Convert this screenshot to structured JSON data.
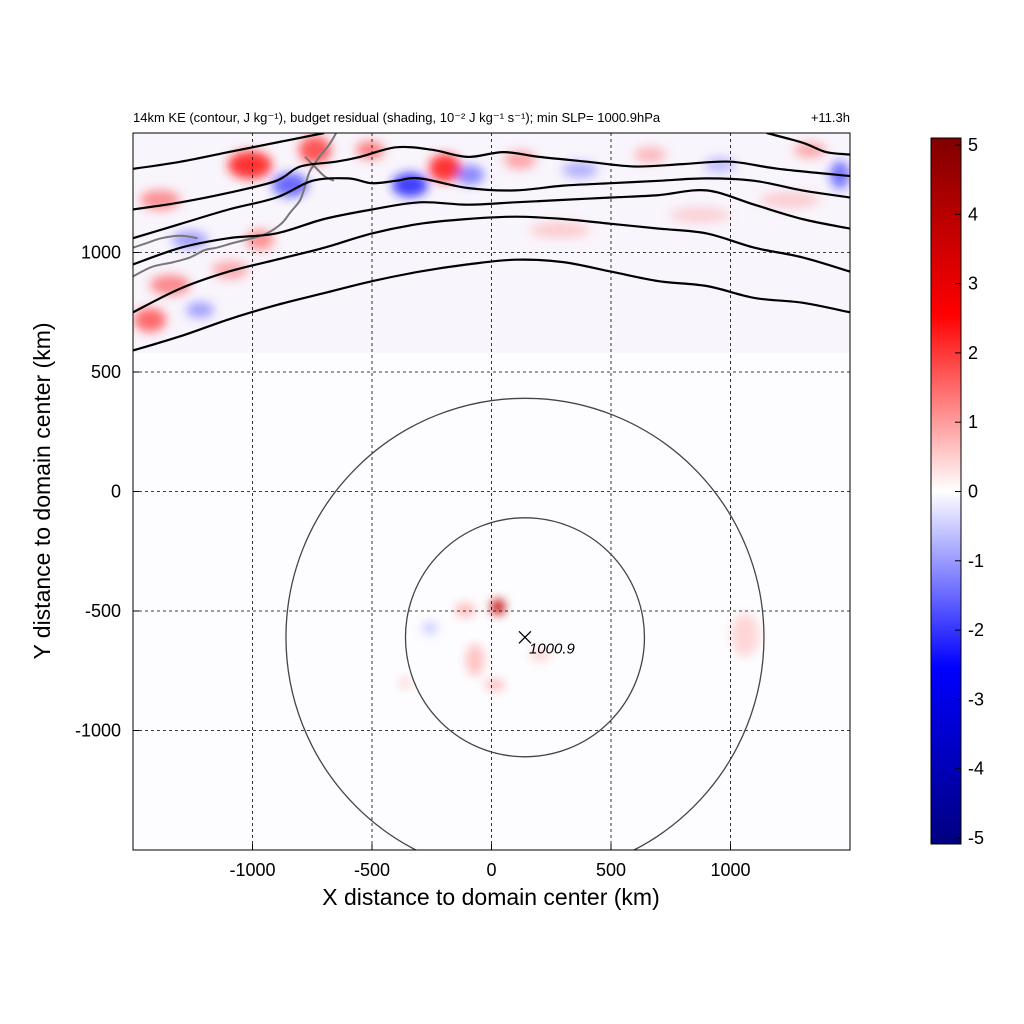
{
  "title": "14km KE (contour, J kg⁻¹), budget residual (shading, 10⁻² J kg⁻¹ s⁻¹); min SLP= 1000.9hPa",
  "time_label": "+11.3h",
  "chart_data": {
    "type": "heatmap",
    "title": "14km KE (contour, J kg⁻¹), budget residual (shading, 10⁻² J kg⁻¹ s⁻¹); min SLP= 1000.9hPa",
    "time_label": "+11.3h",
    "xlabel": "X distance to domain center (km)",
    "ylabel": "Y distance to domain center (km)",
    "xlim": [
      -1500,
      1500
    ],
    "ylim": [
      -1500,
      1500
    ],
    "x_ticks": [
      -1000,
      -500,
      0,
      500,
      1000
    ],
    "y_ticks": [
      -1000,
      -500,
      0,
      500,
      1000
    ],
    "grid": true,
    "colorbar": {
      "range": [
        -5,
        5
      ],
      "ticks": [
        5,
        4,
        3,
        2,
        1,
        0,
        -1,
        -2,
        -3,
        -4,
        -5
      ],
      "colors": [
        "#000080",
        "#0000ff",
        "#ffffff",
        "#ff0000",
        "#800000"
      ]
    },
    "storm_center": {
      "x": 140,
      "y": -610,
      "label": "1000.9"
    },
    "range_rings": [
      {
        "center_x": 140,
        "center_y": -610,
        "radius": 500
      },
      {
        "center_x": 140,
        "center_y": -610,
        "radius": 1000
      }
    ],
    "ke_contours": [
      [
        [
          -1500,
          590
        ],
        [
          -1300,
          650
        ],
        [
          -1100,
          720
        ],
        [
          -900,
          780
        ],
        [
          -700,
          830
        ],
        [
          -500,
          880
        ],
        [
          -300,
          920
        ],
        [
          -100,
          950
        ],
        [
          100,
          970
        ],
        [
          300,
          960
        ],
        [
          500,
          920
        ],
        [
          700,
          880
        ],
        [
          900,
          860
        ],
        [
          1100,
          810
        ],
        [
          1300,
          790
        ],
        [
          1500,
          750
        ]
      ],
      [
        [
          -1500,
          750
        ],
        [
          -1300,
          850
        ],
        [
          -1100,
          920
        ],
        [
          -900,
          970
        ],
        [
          -700,
          1020
        ],
        [
          -500,
          1080
        ],
        [
          -300,
          1120
        ],
        [
          -100,
          1140
        ],
        [
          100,
          1150
        ],
        [
          300,
          1140
        ],
        [
          500,
          1120
        ],
        [
          700,
          1100
        ],
        [
          900,
          1080
        ],
        [
          1100,
          1020
        ],
        [
          1300,
          980
        ],
        [
          1500,
          920
        ]
      ],
      [
        [
          -1500,
          950
        ],
        [
          -1300,
          1020
        ],
        [
          -1100,
          1060
        ],
        [
          -900,
          1080
        ],
        [
          -700,
          1140
        ],
        [
          -500,
          1180
        ],
        [
          -300,
          1210
        ],
        [
          -100,
          1200
        ],
        [
          100,
          1210
        ],
        [
          300,
          1220
        ],
        [
          500,
          1230
        ],
        [
          700,
          1240
        ],
        [
          900,
          1260
        ],
        [
          1100,
          1200
        ],
        [
          1300,
          1140
        ],
        [
          1500,
          1100
        ]
      ],
      [
        [
          -1500,
          1060
        ],
        [
          -1300,
          1120
        ],
        [
          -1100,
          1180
        ],
        [
          -900,
          1230
        ],
        [
          -750,
          1300
        ],
        [
          -600,
          1310
        ],
        [
          -500,
          1290
        ],
        [
          -400,
          1300
        ],
        [
          -300,
          1310
        ],
        [
          -100,
          1270
        ],
        [
          100,
          1260
        ],
        [
          300,
          1280
        ],
        [
          500,
          1290
        ],
        [
          700,
          1300
        ],
        [
          900,
          1310
        ],
        [
          1100,
          1300
        ],
        [
          1300,
          1260
        ],
        [
          1500,
          1230
        ]
      ],
      [
        [
          -1500,
          1180
        ],
        [
          -1300,
          1210
        ],
        [
          -1100,
          1250
        ],
        [
          -900,
          1300
        ],
        [
          -800,
          1360
        ],
        [
          -650,
          1380
        ],
        [
          -550,
          1400
        ],
        [
          -400,
          1440
        ],
        [
          -250,
          1430
        ],
        [
          -100,
          1400
        ],
        [
          50,
          1420
        ],
        [
          200,
          1400
        ],
        [
          400,
          1380
        ],
        [
          600,
          1360
        ],
        [
          800,
          1370
        ],
        [
          1000,
          1380
        ],
        [
          1200,
          1350
        ],
        [
          1500,
          1320
        ]
      ],
      [
        [
          -1500,
          1350
        ],
        [
          -1300,
          1380
        ],
        [
          -1100,
          1420
        ],
        [
          -950,
          1450
        ],
        [
          -800,
          1480
        ],
        [
          -700,
          1500
        ]
      ],
      [
        [
          1150,
          1500
        ],
        [
          1300,
          1460
        ],
        [
          1400,
          1420
        ],
        [
          1500,
          1410
        ]
      ]
    ],
    "coastlines": [
      [
        [
          -1500,
          900
        ],
        [
          -1420,
          940
        ],
        [
          -1330,
          960
        ],
        [
          -1260,
          980
        ],
        [
          -1200,
          1010
        ],
        [
          -1150,
          1020
        ],
        [
          -1080,
          1040
        ],
        [
          -1000,
          1060
        ],
        [
          -940,
          1080
        ],
        [
          -880,
          1120
        ],
        [
          -840,
          1170
        ],
        [
          -800,
          1220
        ],
        [
          -780,
          1280
        ],
        [
          -760,
          1340
        ],
        [
          -720,
          1400
        ],
        [
          -680,
          1450
        ],
        [
          -650,
          1500
        ]
      ],
      [
        [
          -1500,
          1020
        ],
        [
          -1440,
          1040
        ],
        [
          -1380,
          1060
        ],
        [
          -1300,
          1070
        ],
        [
          -1230,
          1060
        ]
      ],
      [
        [
          -780,
          1400
        ],
        [
          -740,
          1360
        ],
        [
          -700,
          1320
        ],
        [
          -660,
          1300
        ]
      ]
    ]
  }
}
